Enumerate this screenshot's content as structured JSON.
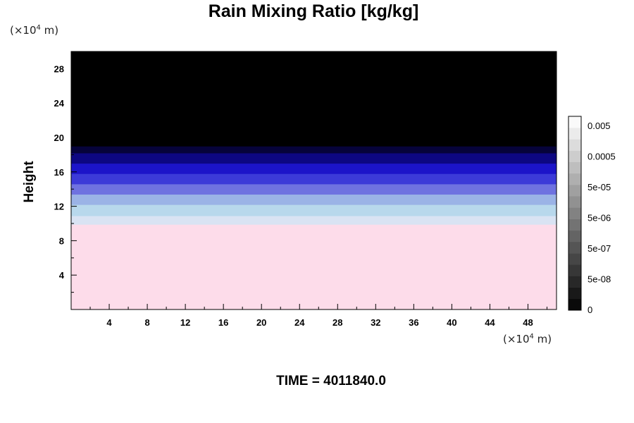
{
  "chart_data": {
    "type": "heatmap",
    "title": "Rain Mixing Ratio [kg/kg]",
    "ylabel": "Height",
    "xlabel": "",
    "y_unit": {
      "prefix": "(×10",
      "exp": "4",
      "suffix": " m)"
    },
    "x_unit": {
      "prefix": "(×10",
      "exp": "4",
      "suffix": " m)"
    },
    "xlim": [
      0,
      51
    ],
    "ylim": [
      0,
      30
    ],
    "x_ticks": [
      4,
      8,
      12,
      16,
      20,
      24,
      28,
      32,
      36,
      40,
      44,
      48
    ],
    "y_ticks": [
      4,
      8,
      12,
      16,
      20,
      24,
      28
    ],
    "x_tick_labels": [
      "4",
      "8",
      "12",
      "16",
      "20",
      "24",
      "28",
      "32",
      "36",
      "40",
      "44",
      "48"
    ],
    "y_tick_labels": [
      "4",
      "8",
      "12",
      "16",
      "20",
      "24",
      "28"
    ],
    "bands": [
      {
        "from": 0,
        "to": 9.9,
        "color": "#fddcea"
      },
      {
        "from": 9.9,
        "to": 10.9,
        "color": "#d9e3f3"
      },
      {
        "from": 10.9,
        "to": 12.2,
        "color": "#b8d8ec"
      },
      {
        "from": 12.2,
        "to": 13.4,
        "color": "#9bb3e6"
      },
      {
        "from": 13.4,
        "to": 14.6,
        "color": "#6f72e0"
      },
      {
        "from": 14.6,
        "to": 15.8,
        "color": "#3c3ad8"
      },
      {
        "from": 15.8,
        "to": 17.0,
        "color": "#1c14c9"
      },
      {
        "from": 17.0,
        "to": 18.2,
        "color": "#0d0782"
      },
      {
        "from": 18.2,
        "to": 19.0,
        "color": "#06033a"
      },
      {
        "from": 19.0,
        "to": 30,
        "color": "#000000"
      }
    ],
    "colorbar": {
      "labels": [
        "0.005",
        "0.0005",
        "5e-05",
        "5e-06",
        "5e-07",
        "5e-08",
        "0"
      ],
      "levels": 17
    }
  },
  "footer": {
    "time": "TIME = 4011840.0"
  }
}
